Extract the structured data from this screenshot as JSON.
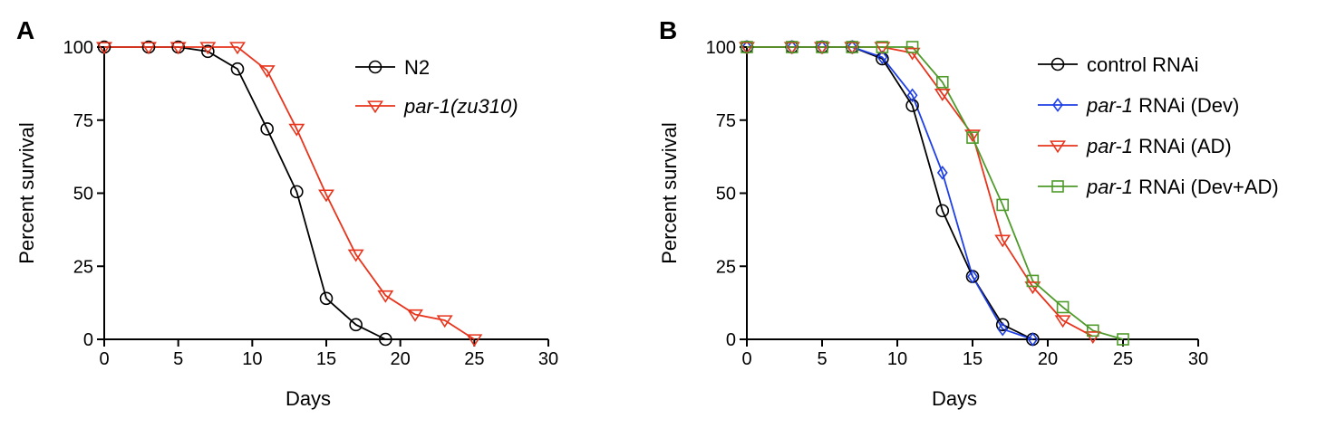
{
  "chart_data": [
    {
      "panel": "A",
      "type": "line",
      "xlabel": "Days",
      "ylabel": "Percent survival",
      "xlim": [
        0,
        30
      ],
      "ylim": [
        0,
        100
      ],
      "xticks": [
        "0",
        "5",
        "10",
        "15",
        "20",
        "25",
        "30"
      ],
      "yticks": [
        "0",
        "25",
        "50",
        "75",
        "100"
      ],
      "legend_position": "top-right",
      "series": [
        {
          "name": "N2",
          "name_italic": "",
          "name_roman": "N2",
          "color": "#000000",
          "marker": "circle",
          "x": [
            0,
            3,
            5,
            7,
            9,
            11,
            13,
            15,
            17,
            19
          ],
          "y": [
            100,
            100,
            100,
            98.5,
            92.5,
            72,
            50.5,
            14,
            5,
            0
          ]
        },
        {
          "name": "par-1(zu310)",
          "name_italic": "par-1(zu310)",
          "name_roman": "",
          "color": "#e8341c",
          "marker": "triangle-down",
          "x": [
            0,
            3,
            5,
            7,
            9,
            11,
            13,
            15,
            17,
            19,
            21,
            23,
            25
          ],
          "y": [
            100,
            100,
            100,
            100,
            100,
            92,
            72,
            49.5,
            29,
            15,
            8.5,
            6.5,
            0
          ]
        }
      ]
    },
    {
      "panel": "B",
      "type": "line",
      "xlabel": "Days",
      "ylabel": "Percent survival",
      "xlim": [
        0,
        30
      ],
      "ylim": [
        0,
        100
      ],
      "xticks": [
        "0",
        "5",
        "10",
        "15",
        "20",
        "25",
        "30"
      ],
      "yticks": [
        "0",
        "25",
        "50",
        "75",
        "100"
      ],
      "legend_position": "top-right",
      "series": [
        {
          "name": "control RNAi",
          "name_italic": "",
          "name_roman": "control RNAi",
          "color": "#000000",
          "marker": "circle",
          "x": [
            0,
            3,
            5,
            7,
            9,
            11,
            13,
            15,
            17,
            19
          ],
          "y": [
            100,
            100,
            100,
            100,
            96,
            80,
            44,
            21.5,
            5,
            0
          ]
        },
        {
          "name": "par-1 RNAi (Dev)",
          "name_italic": "par-1",
          "name_roman": " RNAi (Dev)",
          "color": "#1f3fe6",
          "marker": "diamond",
          "x": [
            0,
            3,
            5,
            7,
            9,
            11,
            13,
            15,
            17,
            19
          ],
          "y": [
            100,
            100,
            100,
            100,
            96.5,
            83.5,
            57,
            21.5,
            3.5,
            0
          ]
        },
        {
          "name": "par-1 RNAi (AD)",
          "name_italic": "par-1",
          "name_roman": " RNAi (AD)",
          "color": "#e8341c",
          "marker": "triangle-down",
          "x": [
            0,
            3,
            5,
            7,
            9,
            11,
            13,
            15,
            17,
            19,
            21,
            23
          ],
          "y": [
            100,
            100,
            100,
            100,
            100,
            98,
            84,
            70,
            34,
            18,
            6.5,
            1
          ]
        },
        {
          "name": "par-1 RNAi (Dev+AD)",
          "name_italic": "par-1",
          "name_roman": " RNAi (Dev+AD)",
          "color": "#4e9a2a",
          "marker": "square",
          "x": [
            0,
            3,
            5,
            7,
            9,
            11,
            13,
            15,
            17,
            19,
            21,
            23,
            25
          ],
          "y": [
            100,
            100,
            100,
            100,
            100,
            100,
            88,
            69,
            46,
            20,
            11,
            3,
            0
          ]
        }
      ]
    }
  ]
}
